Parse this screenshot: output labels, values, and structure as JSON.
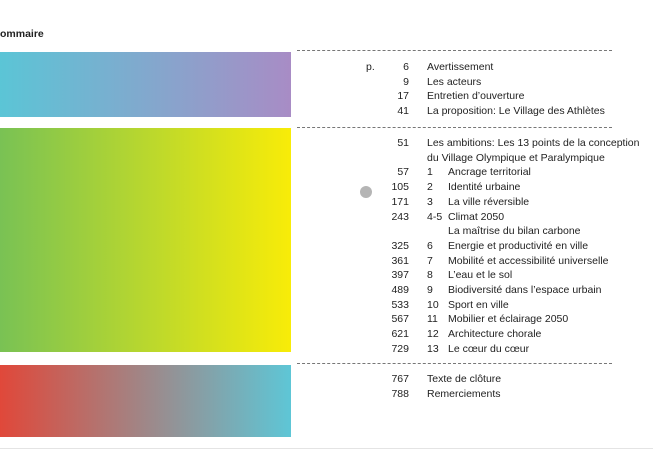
{
  "header": {
    "title": "ommaire",
    "page_prefix": "p."
  },
  "sections": [
    {
      "entries": [
        {
          "page": 6,
          "text": [
            "Avertissement"
          ]
        },
        {
          "page": 9,
          "text": [
            "Les acteurs"
          ]
        },
        {
          "page": 17,
          "text": [
            "Entretien d’ouverture"
          ]
        },
        {
          "page": 41,
          "text": [
            "La proposition: Le Village des Athlètes"
          ]
        }
      ]
    },
    {
      "entries": [
        {
          "page": 51,
          "text": [
            "Les ambitions: Les 13 points de la conception",
            "du Village Olympique et Paralympique"
          ]
        },
        {
          "page": 57,
          "num": "1",
          "text": [
            "Ancrage territorial"
          ]
        },
        {
          "page": 105,
          "num": "2",
          "text": [
            "Identité urbaine"
          ]
        },
        {
          "page": 171,
          "num": "3",
          "text": [
            "La ville réversible"
          ]
        },
        {
          "page": 243,
          "num": "4-5",
          "text": [
            "Climat 2050",
            "La maîtrise du bilan carbone"
          ]
        },
        {
          "page": 325,
          "num": "6",
          "text": [
            "Energie et productivité en ville"
          ]
        },
        {
          "page": 361,
          "num": "7",
          "text": [
            "Mobilité et accessibilité universelle"
          ]
        },
        {
          "page": 397,
          "num": "8",
          "text": [
            "L’eau et le sol"
          ]
        },
        {
          "page": 489,
          "num": "9",
          "text": [
            "Biodiversité dans l’espace urbain"
          ]
        },
        {
          "page": 533,
          "num": "10",
          "text": [
            "Sport en ville"
          ]
        },
        {
          "page": 567,
          "num": "11",
          "text": [
            "Mobilier et éclairage 2050"
          ]
        },
        {
          "page": 621,
          "num": "12",
          "text": [
            "Architecture chorale"
          ]
        },
        {
          "page": 729,
          "num": "13",
          "text": [
            "Le cœur du cœur"
          ]
        }
      ]
    },
    {
      "entries": [
        {
          "page": 767,
          "text": [
            "Texte de clôture"
          ]
        },
        {
          "page": 788,
          "text": [
            "Remerciements"
          ]
        }
      ]
    }
  ]
}
